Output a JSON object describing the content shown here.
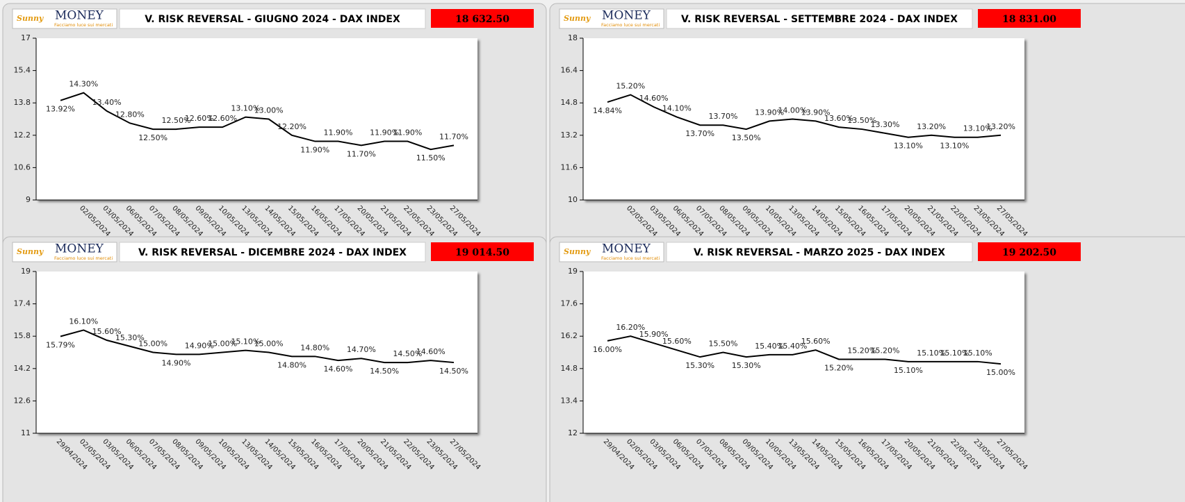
{
  "logo": {
    "brand": "Sunny",
    "name": "MONEY",
    "tagline": "Facciamo luce sui mercati"
  },
  "chart_data": [
    {
      "type": "line",
      "title": "V. RISK REVERSAL - GIUGNO 2024 - DAX INDEX",
      "price_label": "18 632.50",
      "categories": [
        null,
        "02/05/2024",
        "03/05/2024",
        "06/05/2024",
        "07/05/2024",
        "08/05/2024",
        "09/05/2024",
        "10/05/2024",
        "13/05/2024",
        "14/05/2024",
        "15/05/2024",
        "16/05/2024",
        "17/05/2024",
        "20/05/2024",
        "21/05/2024",
        "22/05/2024",
        "23/05/2024",
        "27/05/2024"
      ],
      "values": [
        13.92,
        14.3,
        13.4,
        12.8,
        12.5,
        12.5,
        12.6,
        12.6,
        13.1,
        13.0,
        12.2,
        11.9,
        11.9,
        11.7,
        11.9,
        11.9,
        11.5,
        11.7
      ],
      "value_labels": [
        "13.92%",
        "14.30%",
        "13.40%",
        "12.80%",
        "12.50%",
        "12.50%",
        "12.60%",
        "12.60%",
        "13.10%",
        "13.00%",
        "12.20%",
        "11.90%",
        "11.90%",
        "11.70%",
        "11.90%",
        "11.90%",
        "11.50%",
        "11.70%"
      ],
      "color": "#000000",
      "ylim": [
        9,
        17
      ],
      "yticks": [
        9,
        10.6,
        12.2,
        13.8,
        15.4,
        17
      ]
    },
    {
      "type": "line",
      "title": "V. RISK REVERSAL - SETTEMBRE 2024 - DAX INDEX",
      "price_label": "18 831.00",
      "categories": [
        null,
        "02/05/2024",
        "03/05/2024",
        "06/05/2024",
        "07/05/2024",
        "08/05/2024",
        "09/05/2024",
        "10/05/2024",
        "13/05/2024",
        "14/05/2024",
        "15/05/2024",
        "16/05/2024",
        "17/05/2024",
        "20/05/2024",
        "21/05/2024",
        "22/05/2024",
        "23/05/2024",
        "27/05/2024"
      ],
      "values": [
        14.84,
        15.2,
        14.6,
        14.1,
        13.7,
        13.7,
        13.5,
        13.9,
        14.0,
        13.9,
        13.6,
        13.5,
        13.3,
        13.1,
        13.2,
        13.1,
        13.1,
        13.2
      ],
      "value_labels": [
        "14.84%",
        "15.20%",
        "14.60%",
        "14.10%",
        "13.70%",
        "13.70%",
        "13.50%",
        "13.90%",
        "14.00%",
        "13.90%",
        "13.60%",
        "13.50%",
        "13.30%",
        "13.10%",
        "13.20%",
        "13.10%",
        "13.10%",
        "13.20%"
      ],
      "color": "#000000",
      "ylim": [
        10,
        18
      ],
      "yticks": [
        10,
        11.6,
        13.2,
        14.8,
        16.4,
        18
      ]
    },
    {
      "type": "line",
      "title": "V. RISK REVERSAL - DICEMBRE 2024 - DAX INDEX",
      "price_label": "19 014.50",
      "categories": [
        "29/04/2024",
        "02/05/2024",
        "03/05/2024",
        "06/05/2024",
        "07/05/2024",
        "08/05/2024",
        "09/05/2024",
        "10/05/2024",
        "13/05/2024",
        "14/05/2024",
        "15/05/2024",
        "16/05/2024",
        "17/05/2024",
        "20/05/2024",
        "21/05/2024",
        "22/05/2024",
        "23/05/2024",
        "27/05/2024"
      ],
      "values": [
        15.79,
        16.1,
        15.6,
        15.3,
        15.0,
        14.9,
        14.9,
        15.0,
        15.1,
        15.0,
        14.8,
        14.8,
        14.6,
        14.7,
        14.5,
        14.5,
        14.6,
        14.5
      ],
      "value_labels": [
        "15.79%",
        "16.10%",
        "15.60%",
        "15.30%",
        "15.00%",
        "14.90%",
        "14.90%",
        "15.00%",
        "15.10%",
        "15.00%",
        "14.80%",
        "14.80%",
        "14.60%",
        "14.70%",
        "14.50%",
        "14.50%",
        "14.60%",
        "14.50%"
      ],
      "color": "#000000",
      "ylim": [
        11,
        19
      ],
      "yticks": [
        11,
        12.6,
        14.2,
        15.8,
        17.4,
        19
      ]
    },
    {
      "type": "line",
      "title": "V. RISK REVERSAL - MARZO 2025 - DAX INDEX",
      "price_label": "19 202.50",
      "categories": [
        "29/04/2024",
        "02/05/2024",
        "03/05/2024",
        "06/05/2024",
        "07/05/2024",
        "08/05/2024",
        "09/05/2024",
        "10/05/2024",
        "13/05/2024",
        "14/05/2024",
        "15/05/2024",
        "16/05/2024",
        "17/05/2024",
        "20/05/2024",
        "21/05/2024",
        "22/05/2024",
        "23/05/2024",
        "27/05/2024"
      ],
      "values": [
        16.0,
        16.2,
        15.9,
        15.6,
        15.3,
        15.5,
        15.3,
        15.4,
        15.4,
        15.6,
        15.2,
        15.2,
        15.2,
        15.1,
        15.1,
        15.1,
        15.1,
        15.0
      ],
      "value_labels": [
        "16.00%",
        "16.20%",
        "15.90%",
        "15.60%",
        "15.30%",
        "15.50%",
        "15.30%",
        "15.40%",
        "15.40%",
        "15.60%",
        "15.20%",
        "15.20%",
        "15.20%",
        "15.10%",
        "15.10%",
        "15.10%",
        "15.10%",
        "15.00%"
      ],
      "color": "#000000",
      "ylim": [
        12,
        19
      ],
      "yticks": [
        12,
        13.4,
        14.8,
        16.2,
        17.6,
        19
      ]
    }
  ]
}
